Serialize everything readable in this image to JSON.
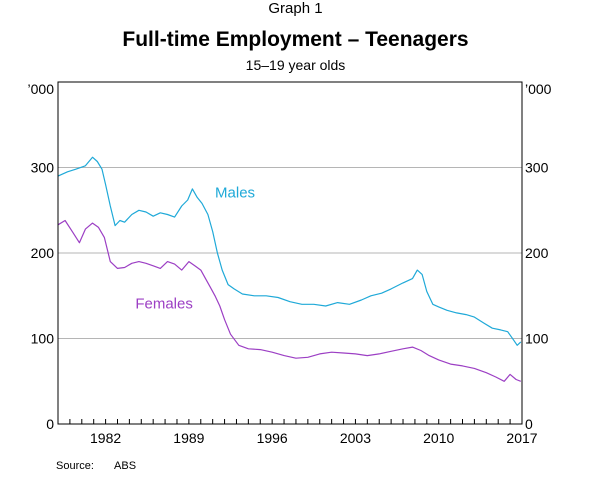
{
  "chart_data": {
    "type": "line",
    "graph_label": "Graph 1",
    "title": "Full-time Employment – Teenagers",
    "subtitle": "15–19 year olds",
    "unit_left": "’000",
    "unit_right": "’000",
    "xlim": [
      1978.0,
      2017.0
    ],
    "ylim": [
      0,
      400
    ],
    "y_ticks": [
      0,
      100,
      200,
      300
    ],
    "x_ticks": [
      1982,
      1989,
      1996,
      2003,
      2010,
      2017
    ],
    "grid": true,
    "series": [
      {
        "name": "Males",
        "color": "#1fa9d8",
        "x": [
          1978.0,
          1978.8,
          1979.5,
          1980.3,
          1980.9,
          1981.3,
          1981.7,
          1982.0,
          1982.4,
          1982.8,
          1983.2,
          1983.6,
          1984.2,
          1984.8,
          1985.4,
          1986.0,
          1986.6,
          1987.2,
          1987.8,
          1988.4,
          1988.9,
          1989.3,
          1989.7,
          1990.1,
          1990.6,
          1991.0,
          1991.4,
          1991.8,
          1992.3,
          1992.8,
          1993.5,
          1994.5,
          1995.5,
          1996.5,
          1997.5,
          1998.5,
          1999.5,
          2000.5,
          2001.5,
          2002.5,
          2003.5,
          2004.3,
          2005.2,
          2006.0,
          2007.0,
          2007.8,
          2008.2,
          2008.6,
          2009.0,
          2009.5,
          2010.0,
          2010.7,
          2011.5,
          2012.3,
          2013.0,
          2013.8,
          2014.5,
          2015.2,
          2015.8,
          2016.3,
          2016.6,
          2016.9
        ],
        "values": [
          290,
          295,
          298,
          302,
          312,
          307,
          298,
          280,
          255,
          232,
          238,
          236,
          245,
          250,
          248,
          243,
          247,
          245,
          242,
          255,
          262,
          275,
          265,
          258,
          245,
          225,
          200,
          180,
          163,
          158,
          152,
          150,
          150,
          148,
          143,
          140,
          140,
          138,
          142,
          140,
          145,
          150,
          153,
          158,
          165,
          170,
          180,
          175,
          155,
          140,
          137,
          133,
          130,
          128,
          125,
          118,
          112,
          110,
          108,
          98,
          92,
          96
        ]
      },
      {
        "name": "Females",
        "color": "#9c3fc4",
        "x": [
          1978.0,
          1978.6,
          1979.2,
          1979.8,
          1980.3,
          1980.9,
          1981.4,
          1981.9,
          1982.4,
          1983.0,
          1983.6,
          1984.2,
          1984.8,
          1985.4,
          1986.0,
          1986.6,
          1987.2,
          1987.8,
          1988.4,
          1989.0,
          1989.5,
          1990.0,
          1990.4,
          1990.8,
          1991.2,
          1991.6,
          1992.0,
          1992.5,
          1993.2,
          1994.0,
          1995.0,
          1996.0,
          1997.0,
          1998.0,
          1999.0,
          2000.0,
          2001.0,
          2002.0,
          2003.0,
          2004.0,
          2005.0,
          2006.0,
          2007.0,
          2007.8,
          2008.5,
          2009.2,
          2010.0,
          2011.0,
          2012.0,
          2013.0,
          2014.0,
          2014.8,
          2015.5,
          2016.0,
          2016.5,
          2016.9
        ],
        "values": [
          233,
          238,
          225,
          212,
          228,
          235,
          230,
          218,
          190,
          182,
          183,
          188,
          190,
          188,
          185,
          182,
          190,
          187,
          180,
          190,
          185,
          180,
          170,
          160,
          150,
          138,
          122,
          105,
          92,
          88,
          87,
          84,
          80,
          77,
          78,
          82,
          84,
          83,
          82,
          80,
          82,
          85,
          88,
          90,
          86,
          80,
          75,
          70,
          68,
          65,
          60,
          55,
          50,
          58,
          52,
          50
        ]
      }
    ],
    "series_labels": [
      {
        "text": "Males",
        "x": 1991.2,
        "y": 265
      },
      {
        "text": "Females",
        "x": 1984.5,
        "y": 135
      }
    ]
  },
  "source": {
    "label": "Source:",
    "value": "ABS"
  }
}
